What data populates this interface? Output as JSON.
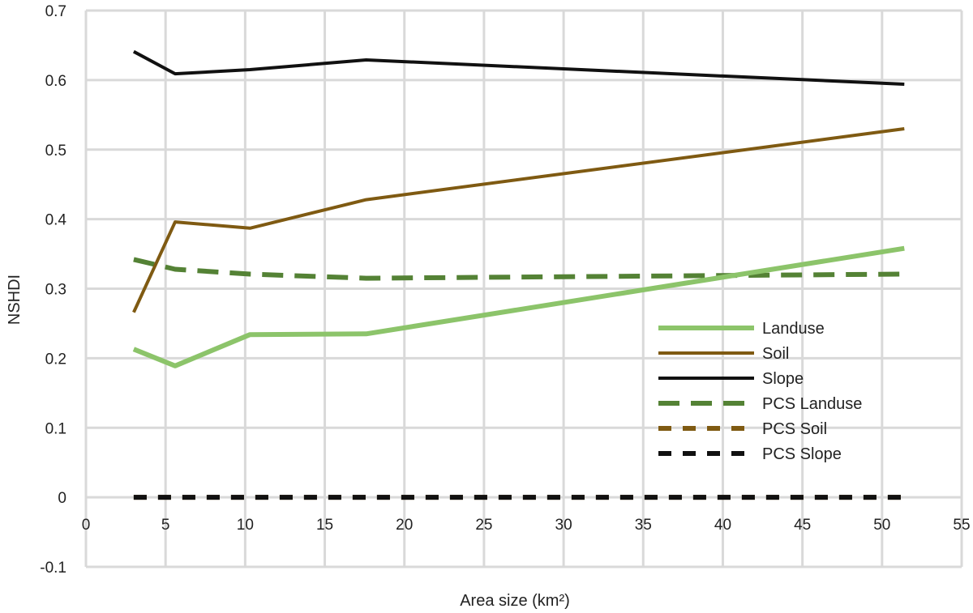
{
  "chart_data": {
    "type": "line",
    "title": "",
    "xlabel": "Area size (km²)",
    "ylabel": "NSHDI",
    "xlim": [
      0,
      55
    ],
    "ylim": [
      -0.1,
      0.7
    ],
    "xticks": [
      0,
      5,
      10,
      15,
      20,
      25,
      30,
      35,
      40,
      45,
      50,
      55
    ],
    "yticks": [
      -0.1,
      0,
      0.1,
      0.2,
      0.3,
      0.4,
      0.5,
      0.6,
      0.7
    ],
    "ytick_labels": [
      "-0.1",
      "0",
      "0.1",
      "0.2",
      "0.3",
      "0.4",
      "0.5",
      "0.6",
      "0.7"
    ],
    "grid": true,
    "legend_position": "right",
    "series": [
      {
        "name": "Landuse",
        "color": "#8cc46a",
        "style": "solid",
        "x": [
          3,
          5.6,
          10.3,
          17.6,
          51.4
        ],
        "y": [
          0.213,
          0.189,
          0.234,
          0.235,
          0.358
        ]
      },
      {
        "name": "Soil",
        "color": "#7f5a12",
        "style": "solid",
        "x": [
          3,
          5.6,
          10.3,
          17.6,
          51.4
        ],
        "y": [
          0.266,
          0.396,
          0.387,
          0.428,
          0.53
        ]
      },
      {
        "name": "Slope",
        "color": "#111111",
        "style": "solid",
        "x": [
          3,
          5.6,
          10.3,
          17.6,
          51.4
        ],
        "y": [
          0.641,
          0.609,
          0.615,
          0.629,
          0.594
        ]
      },
      {
        "name": "PCS Landuse",
        "color": "#548235",
        "style": "dashed",
        "x": [
          3,
          5.6,
          10.3,
          17.6,
          51.4
        ],
        "y": [
          0.342,
          0.328,
          0.321,
          0.315,
          0.321
        ]
      },
      {
        "name": "PCS Soil",
        "color": "#7f5a12",
        "style": "dashed",
        "x": [
          3,
          5.6,
          10.3,
          17.6,
          51.4
        ],
        "y": [
          0,
          0,
          0,
          0,
          0
        ]
      },
      {
        "name": "PCS Slope",
        "color": "#111111",
        "style": "dashed",
        "x": [
          3,
          5.6,
          10.3,
          17.6,
          51.4
        ],
        "y": [
          0,
          0,
          0,
          0,
          0
        ]
      }
    ]
  }
}
